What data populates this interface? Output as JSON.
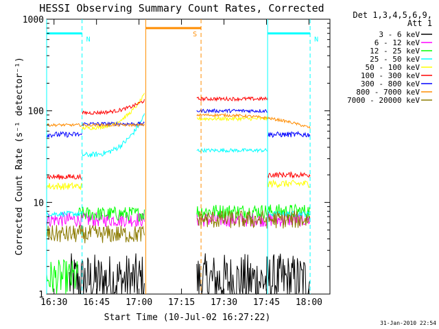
{
  "chart_data": {
    "type": "line",
    "title": "HESSI Observing Summary Count Rates, Corrected",
    "xlabel": "Start Time (10-Jul-02 16:27:22)",
    "ylabel": "Corrected Count Rate (s⁻¹ detector⁻¹)",
    "yscale": "log",
    "ylim": [
      1,
      1000
    ],
    "xlim_minutes": [
      0,
      100
    ],
    "x_ticks": [
      {
        "label": "16:30",
        "t": 2.6
      },
      {
        "label": "16:45",
        "t": 17.6
      },
      {
        "label": "17:00",
        "t": 32.6
      },
      {
        "label": "17:15",
        "t": 47.6
      },
      {
        "label": "17:30",
        "t": 62.6
      },
      {
        "label": "17:45",
        "t": 77.6
      },
      {
        "label": "18:00",
        "t": 92.6
      }
    ],
    "y_ticks": [
      {
        "label": "1",
        "v": 1
      },
      {
        "label": "10",
        "v": 10
      },
      {
        "label": "100",
        "v": 100
      },
      {
        "label": "1000",
        "v": 1000
      }
    ],
    "legend_header": [
      "Det 1,3,4,5,6,9,",
      "Att 1"
    ],
    "legend_position": "top-right, outside plot",
    "series": [
      {
        "name": "3 - 6 keV",
        "color": "#000000",
        "segments": [
          {
            "t0": 8.0,
            "t1": 34.5,
            "level": 1.4,
            "noise": 0.3
          },
          {
            "t0": 53.0,
            "t1": 93.0,
            "level": 1.4,
            "noise": 0.3
          }
        ]
      },
      {
        "name": "6 - 12 keV",
        "color": "#ff00ff",
        "segments": [
          {
            "t0": 0.0,
            "t1": 34.5,
            "level": 6.5,
            "noise": 0.08
          },
          {
            "t0": 53.0,
            "t1": 93.0,
            "level": 6.5,
            "noise": 0.08
          }
        ]
      },
      {
        "name": "12 - 25 keV",
        "color": "#00ff00",
        "segments": [
          {
            "t0": 0.0,
            "t1": 11.0,
            "level": 1.5,
            "noise": 0.2
          },
          {
            "t0": 11.0,
            "t1": 34.5,
            "level": 7.5,
            "noise": 0.08
          },
          {
            "t0": 53.0,
            "t1": 93.0,
            "level": 8.0,
            "noise": 0.08
          }
        ]
      },
      {
        "name": "25 - 50 keV",
        "color": "#00ffff",
        "segments": [
          {
            "t0": 0.0,
            "t1": 12.5,
            "level": 7.5,
            "noise": 0.03
          },
          {
            "t0": 12.5,
            "t1": 34.5,
            "level": 33,
            "end": 90,
            "noise": 0.03
          },
          {
            "t0": 53.0,
            "t1": 78.0,
            "level": 37,
            "noise": 0.02
          },
          {
            "t0": 78.0,
            "t1": 93.0,
            "level": 7.5,
            "noise": 0.03
          }
        ]
      },
      {
        "name": "50 - 100 keV",
        "color": "#ffff00",
        "segments": [
          {
            "t0": 0.0,
            "t1": 12.5,
            "level": 15,
            "noise": 0.04
          },
          {
            "t0": 12.5,
            "t1": 34.5,
            "level": 65,
            "end": 150,
            "noise": 0.02
          },
          {
            "t0": 53.0,
            "t1": 78.0,
            "level": 82,
            "noise": 0.02
          },
          {
            "t0": 78.0,
            "t1": 93.0,
            "level": 16,
            "noise": 0.04
          }
        ]
      },
      {
        "name": "100 - 300 keV",
        "color": "#ff0000",
        "segments": [
          {
            "t0": 0.0,
            "t1": 12.5,
            "level": 19,
            "noise": 0.03
          },
          {
            "t0": 12.5,
            "t1": 34.5,
            "level": 95,
            "end": 130,
            "noise": 0.02
          },
          {
            "t0": 53.0,
            "t1": 78.0,
            "level": 135,
            "noise": 0.02
          },
          {
            "t0": 78.0,
            "t1": 93.0,
            "level": 20,
            "noise": 0.03
          }
        ]
      },
      {
        "name": "300 - 800 keV",
        "color": "#0000ff",
        "segments": [
          {
            "t0": 0.0,
            "t1": 12.5,
            "level": 55,
            "noise": 0.03
          },
          {
            "t0": 12.5,
            "t1": 34.5,
            "level": 72,
            "noise": 0.02
          },
          {
            "t0": 53.0,
            "t1": 78.0,
            "level": 100,
            "noise": 0.02
          },
          {
            "t0": 78.0,
            "t1": 93.0,
            "level": 55,
            "noise": 0.03
          }
        ]
      },
      {
        "name": "800 - 7000 keV",
        "color": "#ff8c00",
        "segments": [
          {
            "t0": 0.0,
            "t1": 34.5,
            "level": 70,
            "noise": 0.015
          },
          {
            "t0": 53.0,
            "t1": 93.0,
            "level": 90,
            "end": 65,
            "noise": 0.015
          }
        ]
      },
      {
        "name": "7000 - 20000 keV",
        "color": "#8b7a00",
        "segments": [
          {
            "t0": 0.0,
            "t1": 34.5,
            "level": 4.5,
            "noise": 0.1
          },
          {
            "t0": 53.0,
            "t1": 93.0,
            "level": 6.5,
            "noise": 0.1
          }
        ]
      }
    ],
    "markers": [
      {
        "label": "N",
        "color": "#00ffff",
        "t0": 0.0,
        "t1": 12.5,
        "value": 700
      },
      {
        "label": "N",
        "color": "#00ffff",
        "t0": 78.0,
        "t1": 93.0,
        "value": 700
      },
      {
        "label": "S",
        "color": "#ff8c00",
        "t0": 35.0,
        "t1": 54.5,
        "value": 800
      }
    ],
    "grid": false
  },
  "footer": {
    "timestamp": "31-Jan-2010 22:54"
  }
}
